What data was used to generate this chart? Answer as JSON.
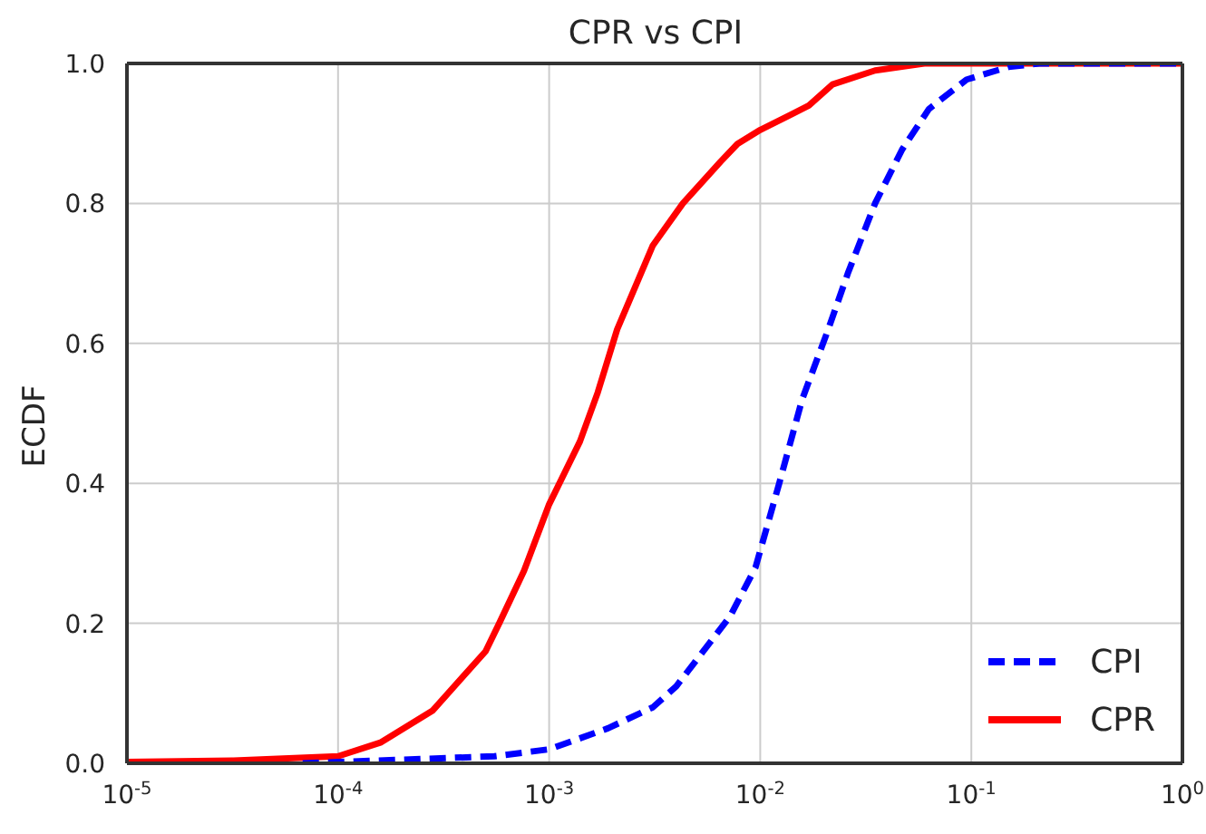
{
  "chart_data": {
    "type": "line",
    "title": "CPR vs CPI",
    "ylabel": "ECDF",
    "xlim": [
      1e-05,
      1
    ],
    "xticks": [
      {
        "value": 1e-05,
        "label": "10$^{-5}$"
      },
      {
        "value": 0.0001,
        "label": "10$^{-4}$"
      },
      {
        "value": 0.001,
        "label": "10$^{-3}$"
      },
      {
        "value": 0.01,
        "label": "10$^{-2}$"
      },
      {
        "value": 0.1,
        "label": "10$^{-1}$"
      },
      {
        "value": 1,
        "label": "10$^{0}$"
      }
    ],
    "ylim": [
      0,
      1
    ],
    "yticks": [
      {
        "value": 0,
        "label": "0.0"
      },
      0.2,
      0.4,
      0.6,
      0.8,
      {
        "value": 1,
        "label": "1.0"
      }
    ],
    "log": "x",
    "grid": true,
    "legend": "bottom right",
    "marker": "none",
    "series": [
      {
        "name": "CPI",
        "color": "#0000ff",
        "line_style": "dashed",
        "x": [
          6.8e-05,
          0.00055,
          0.001,
          0.0019,
          0.0031,
          0.004,
          0.0072,
          0.0095,
          0.0123,
          0.0158,
          0.021,
          0.026,
          0.035,
          0.047,
          0.063,
          0.095,
          0.15,
          0.21,
          1
        ],
        "values": [
          0,
          0.01,
          0.02,
          0.05,
          0.08,
          0.11,
          0.21,
          0.28,
          0.4,
          0.52,
          0.62,
          0.7,
          0.8,
          0.877,
          0.935,
          0.977,
          0.995,
          1,
          1
        ]
      },
      {
        "name": "CPR",
        "color": "#ff0000",
        "line_style": "solid",
        "x": [
          1e-05,
          3.2e-05,
          0.0001,
          0.00016,
          0.00028,
          0.0005,
          0.00058,
          0.00076,
          0.001,
          0.0014,
          0.0017,
          0.0021,
          0.0031,
          0.0043,
          0.0065,
          0.0078,
          0.01,
          0.014,
          0.017,
          0.022,
          0.035,
          0.06,
          1
        ],
        "values": [
          0.002,
          0.004,
          0.01,
          0.03,
          0.075,
          0.16,
          0.2,
          0.275,
          0.37,
          0.46,
          0.53,
          0.62,
          0.74,
          0.8,
          0.86,
          0.885,
          0.905,
          0.927,
          0.94,
          0.97,
          0.99,
          1,
          1
        ]
      }
    ]
  }
}
